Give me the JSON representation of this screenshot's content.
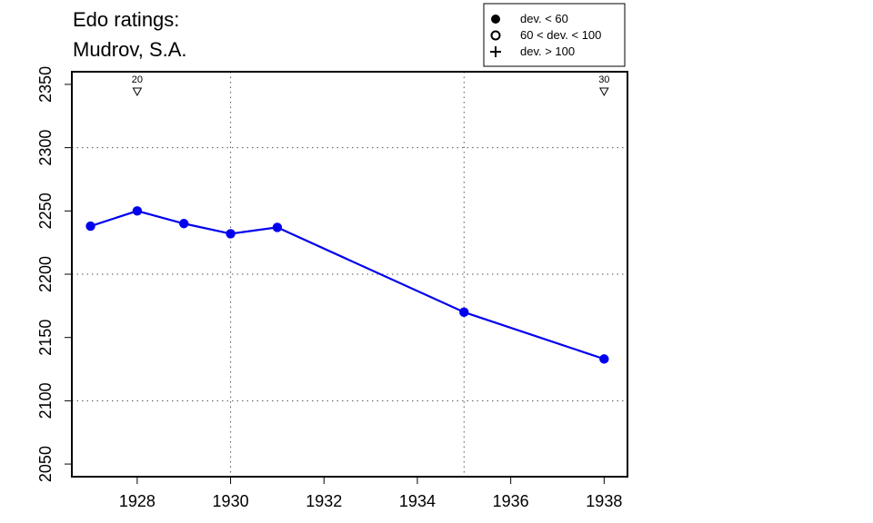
{
  "chart_data": {
    "type": "line",
    "title_lines": [
      "Edo ratings:",
      "Mudrov, S.A."
    ],
    "xlabel": "",
    "ylabel": "",
    "xlim": [
      1926.6,
      1938.5
    ],
    "ylim": [
      2040,
      2360
    ],
    "x_ticks": [
      1928,
      1930,
      1932,
      1934,
      1936,
      1938
    ],
    "y_ticks": [
      2050,
      2100,
      2150,
      2200,
      2250,
      2300,
      2350
    ],
    "x_grid": [
      1930,
      1935
    ],
    "y_grid": [
      2100,
      2200,
      2300
    ],
    "grid": true,
    "series": [
      {
        "color": "#0000ee",
        "points": [
          {
            "x": 1927,
            "y": 2238
          },
          {
            "x": 1928,
            "y": 2250
          },
          {
            "x": 1929,
            "y": 2240
          },
          {
            "x": 1930,
            "y": 2232
          },
          {
            "x": 1931,
            "y": 2237
          },
          {
            "x": 1935,
            "y": 2170
          },
          {
            "x": 1938,
            "y": 2133
          }
        ]
      }
    ],
    "top_markers": [
      {
        "x": 1928,
        "label": "20"
      },
      {
        "x": 1938,
        "label": "30"
      }
    ],
    "legend": {
      "position": "top-right",
      "entries": [
        {
          "symbol": "filled-circle",
          "label": "dev. < 60"
        },
        {
          "symbol": "open-circle",
          "label": "60 < dev. < 100"
        },
        {
          "symbol": "plus",
          "label": "dev. > 100"
        }
      ]
    }
  }
}
